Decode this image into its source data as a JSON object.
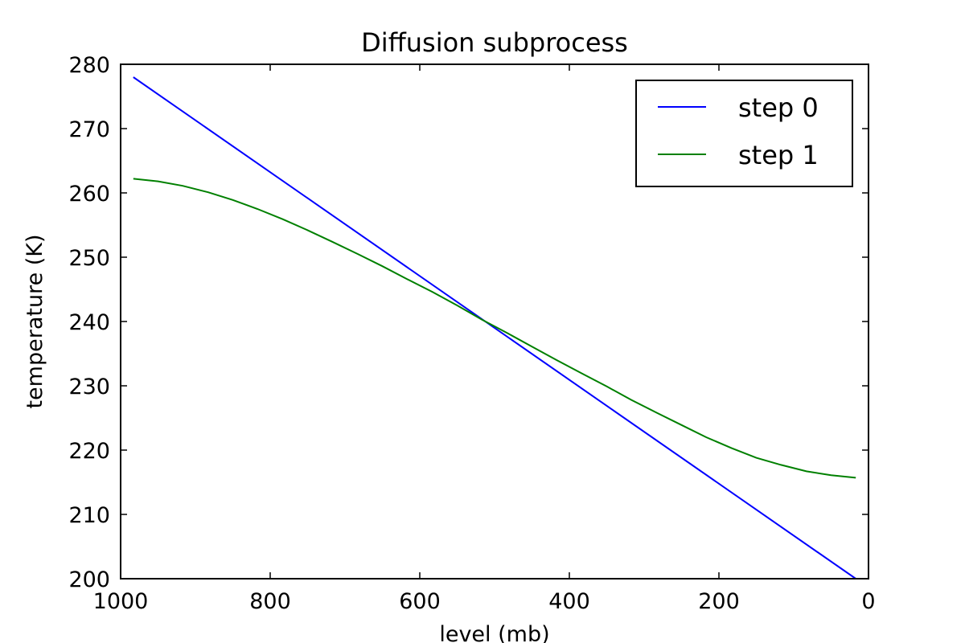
{
  "chart_data": {
    "type": "line",
    "title": "Diffusion subprocess",
    "xlabel": "level (mb)",
    "ylabel": "temperature (K)",
    "xlim": [
      1000,
      0
    ],
    "ylim": [
      200,
      280
    ],
    "x_ticks": [
      1000,
      800,
      600,
      400,
      200,
      0
    ],
    "y_ticks": [
      200,
      210,
      220,
      230,
      240,
      250,
      260,
      270,
      280
    ],
    "grid": false,
    "legend_position": "top-right",
    "series": [
      {
        "name": "step 0",
        "color": "#0000ff",
        "x": [
          983,
          17
        ],
        "y": [
          278,
          200
        ]
      },
      {
        "name": "step 1",
        "color": "#008000",
        "x": [
          983,
          950,
          917,
          883,
          850,
          817,
          783,
          750,
          717,
          683,
          650,
          617,
          583,
          550,
          517,
          483,
          450,
          417,
          383,
          350,
          317,
          283,
          250,
          217,
          183,
          150,
          117,
          83,
          50,
          17
        ],
        "y": [
          262.2,
          261.8,
          261.1,
          260.1,
          258.9,
          257.5,
          255.9,
          254.2,
          252.4,
          250.5,
          248.6,
          246.6,
          244.6,
          242.5,
          240.3,
          238.2,
          236.1,
          234.0,
          231.9,
          229.9,
          227.8,
          225.8,
          223.9,
          222.0,
          220.3,
          218.8,
          217.7,
          216.7,
          216.1,
          215.7
        ]
      }
    ]
  }
}
